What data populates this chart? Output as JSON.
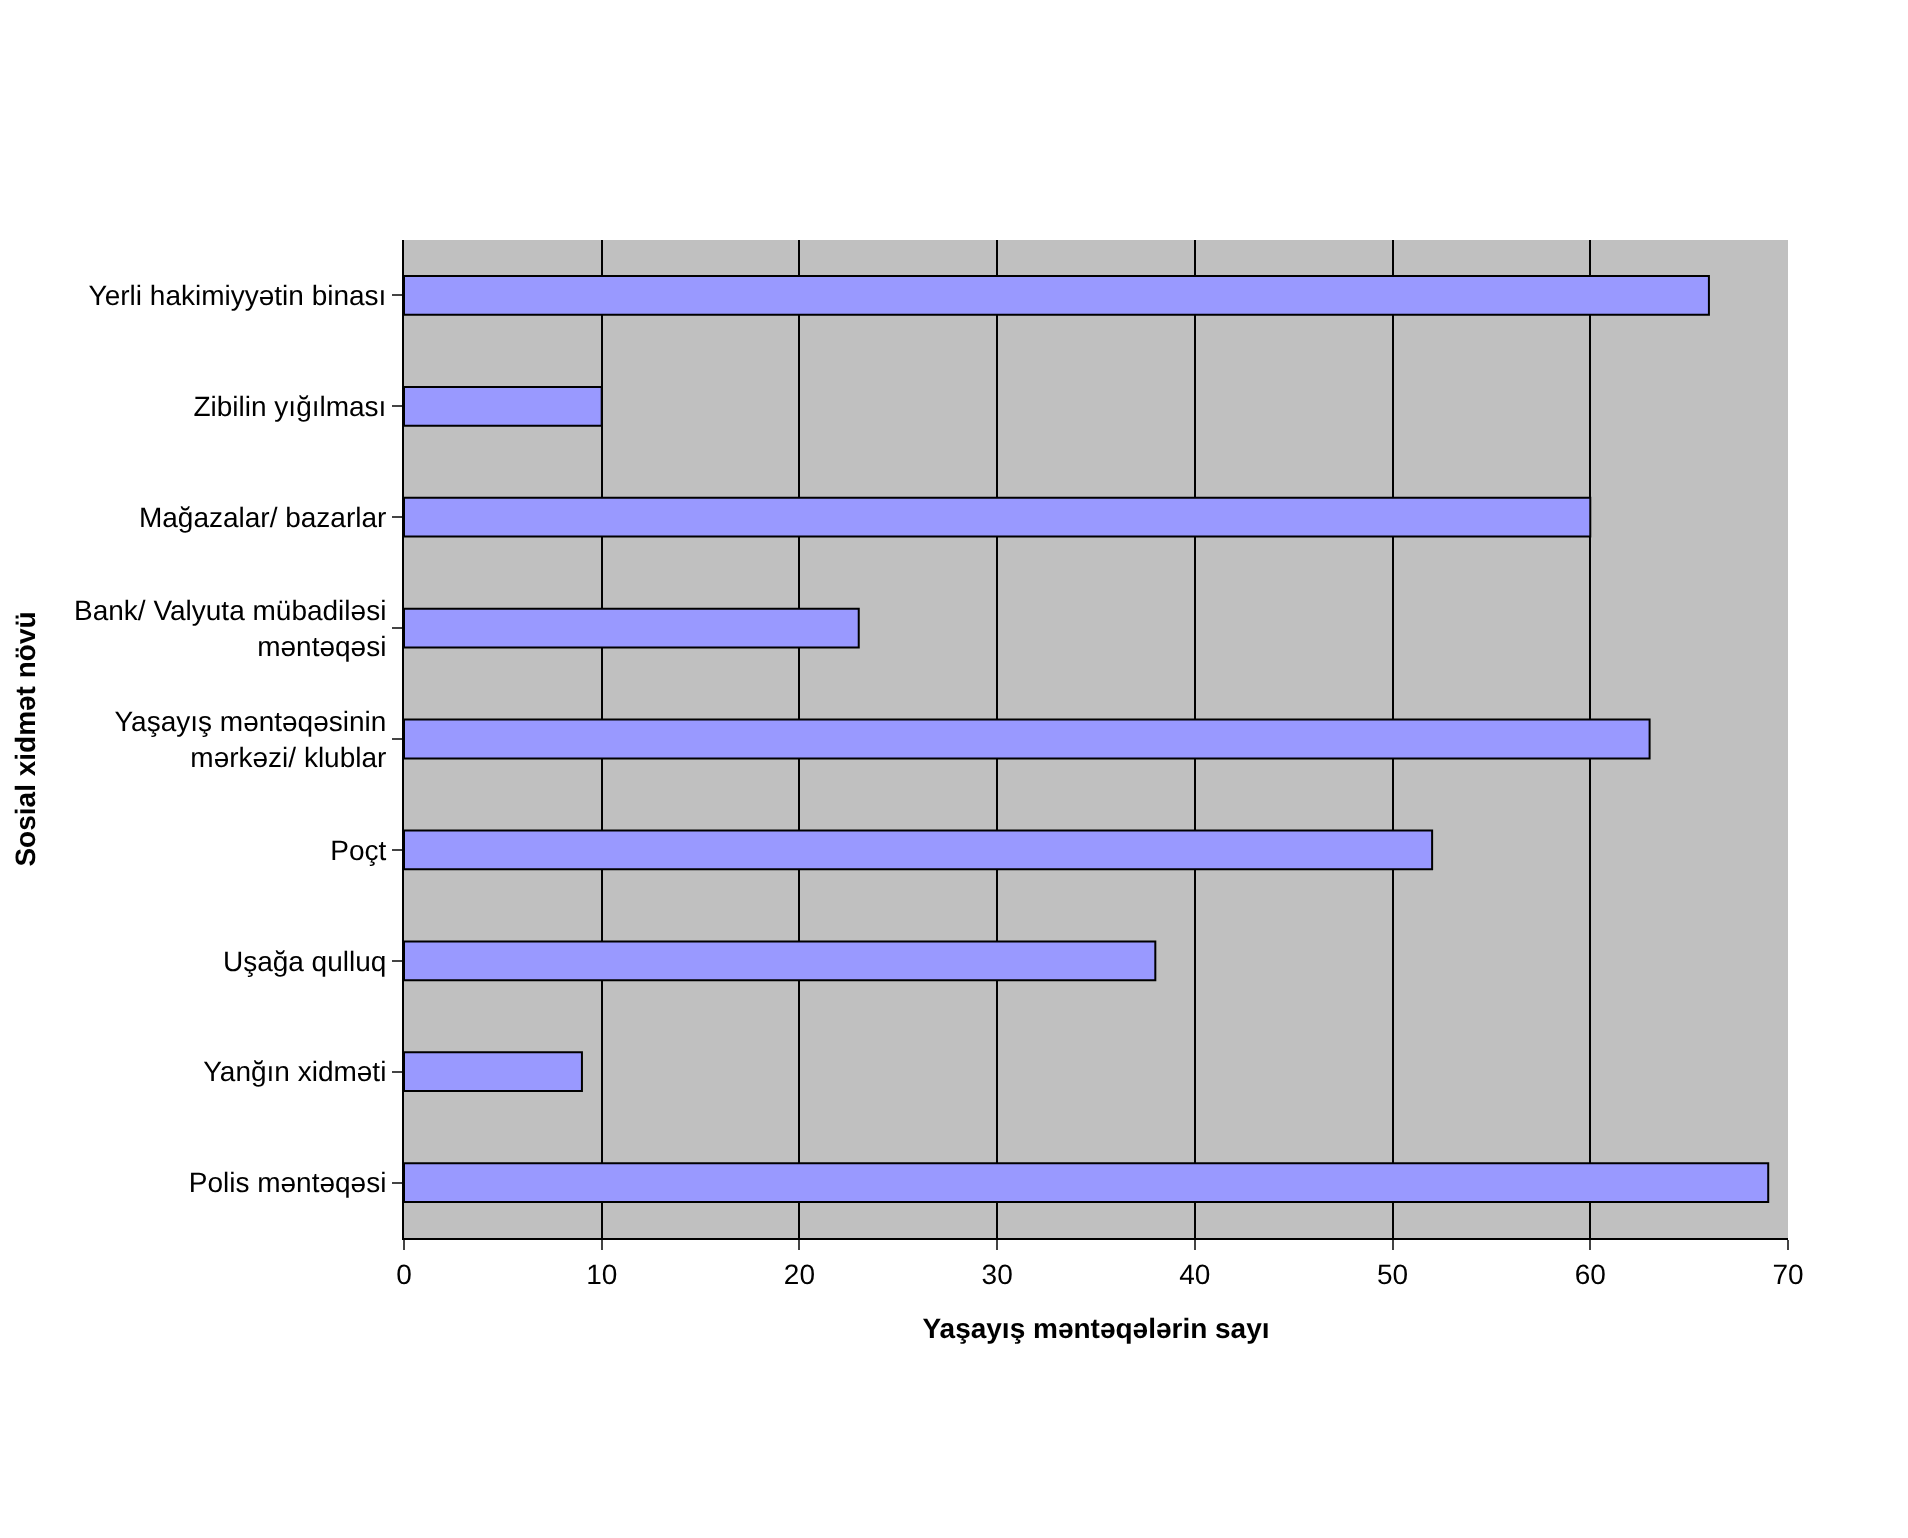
{
  "chart_data": {
    "type": "bar",
    "orientation": "horizontal",
    "xlabel": "Yaşayış məntəqələrin sayı",
    "ylabel": "Sosial xidmət növü",
    "categories": [
      "Yerli hakimiyyətin binası",
      "Zibilin yığılması",
      "Mağazalar/ bazarlar",
      "Bank/ Valyuta mübadiləsi məntəqəsi",
      "Yaşayış məntəqəsinin mərkəzi/ klublar",
      "Poçt",
      "Uşağa qulluq",
      "Yanğın xidməti",
      "Polis məntəqəsi"
    ],
    "values": [
      66,
      10,
      60,
      23,
      63,
      52,
      38,
      9,
      69
    ],
    "color": "#9999ff",
    "xlim": [
      0,
      70
    ],
    "xticks": [
      0,
      10,
      20,
      30,
      40,
      50,
      60,
      70
    ],
    "grid": "x"
  }
}
